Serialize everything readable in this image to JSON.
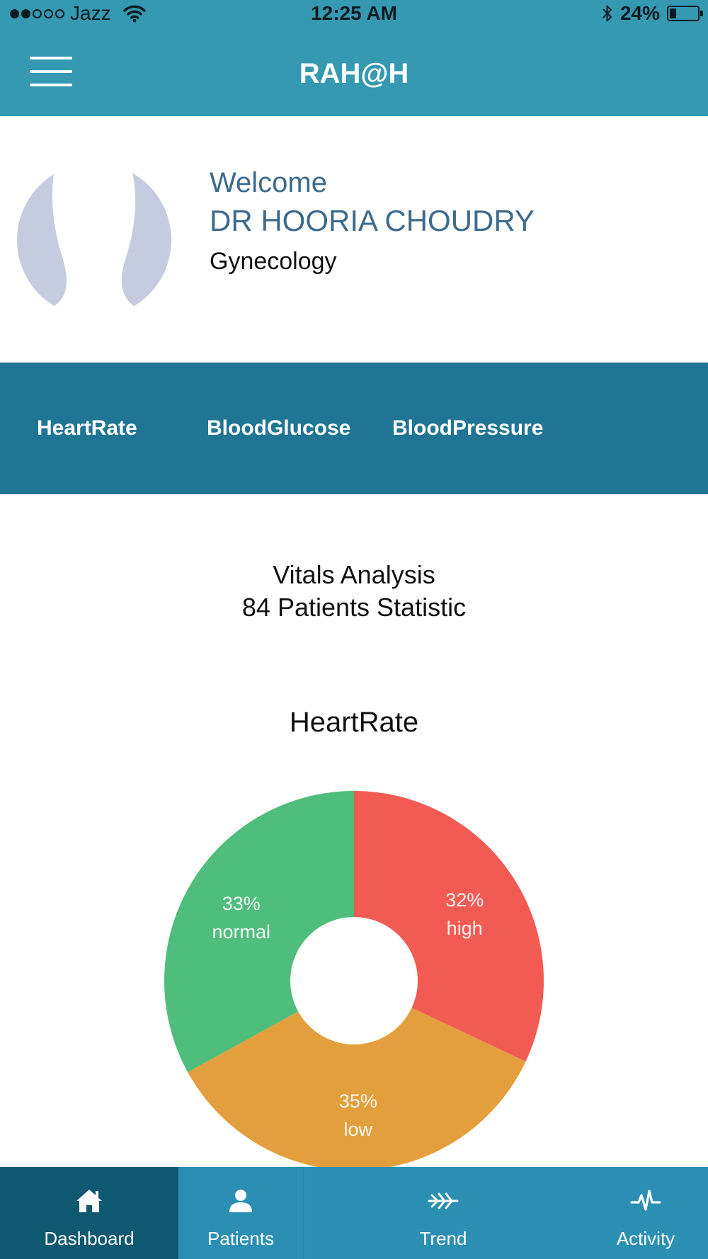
{
  "status_bar": {
    "carrier": "Jazz",
    "signal_bars_filled": 2,
    "signal_bars_total": 5,
    "time": "12:25 AM",
    "battery_percent": "24%",
    "battery_level": 0.24
  },
  "nav": {
    "title": "RAH@H",
    "menu_icon": "hamburger-menu-icon"
  },
  "profile": {
    "welcome": "Welcome",
    "name": "DR HOORIA CHOUDRY",
    "specialty": "Gynecology",
    "avatar_icon": "person-silhouette-icon"
  },
  "vitals_tabs": [
    "HeartRate",
    "BloodGlucose",
    "BloodPressure"
  ],
  "analysis": {
    "title": "Vitals Analysis",
    "subtitle": "84 Patients Statistic"
  },
  "chart_data": {
    "type": "pie",
    "title": "HeartRate",
    "donut": true,
    "slices": [
      {
        "label": "high",
        "value": 32,
        "display": "32%",
        "color": "#f15b53"
      },
      {
        "label": "low",
        "value": 35,
        "display": "35%",
        "color": "#e39f3d"
      },
      {
        "label": "normal",
        "value": 33,
        "display": "33%",
        "color": "#4fbd7c"
      }
    ]
  },
  "tab_bar": {
    "active": "Dashboard",
    "items": [
      {
        "label": "Dashboard",
        "icon": "home-icon"
      },
      {
        "label": "Patients",
        "icon": "person-icon"
      },
      {
        "label": "Trend",
        "icon": "trend-icon"
      },
      {
        "label": "Activity",
        "icon": "pulse-icon"
      }
    ]
  },
  "colors": {
    "header": "#3599b2",
    "vitals_bar": "#1f7593",
    "tab_bar": "#2b8fb4",
    "tab_active": "#0e5872",
    "name_text": "#3d6a8c"
  }
}
